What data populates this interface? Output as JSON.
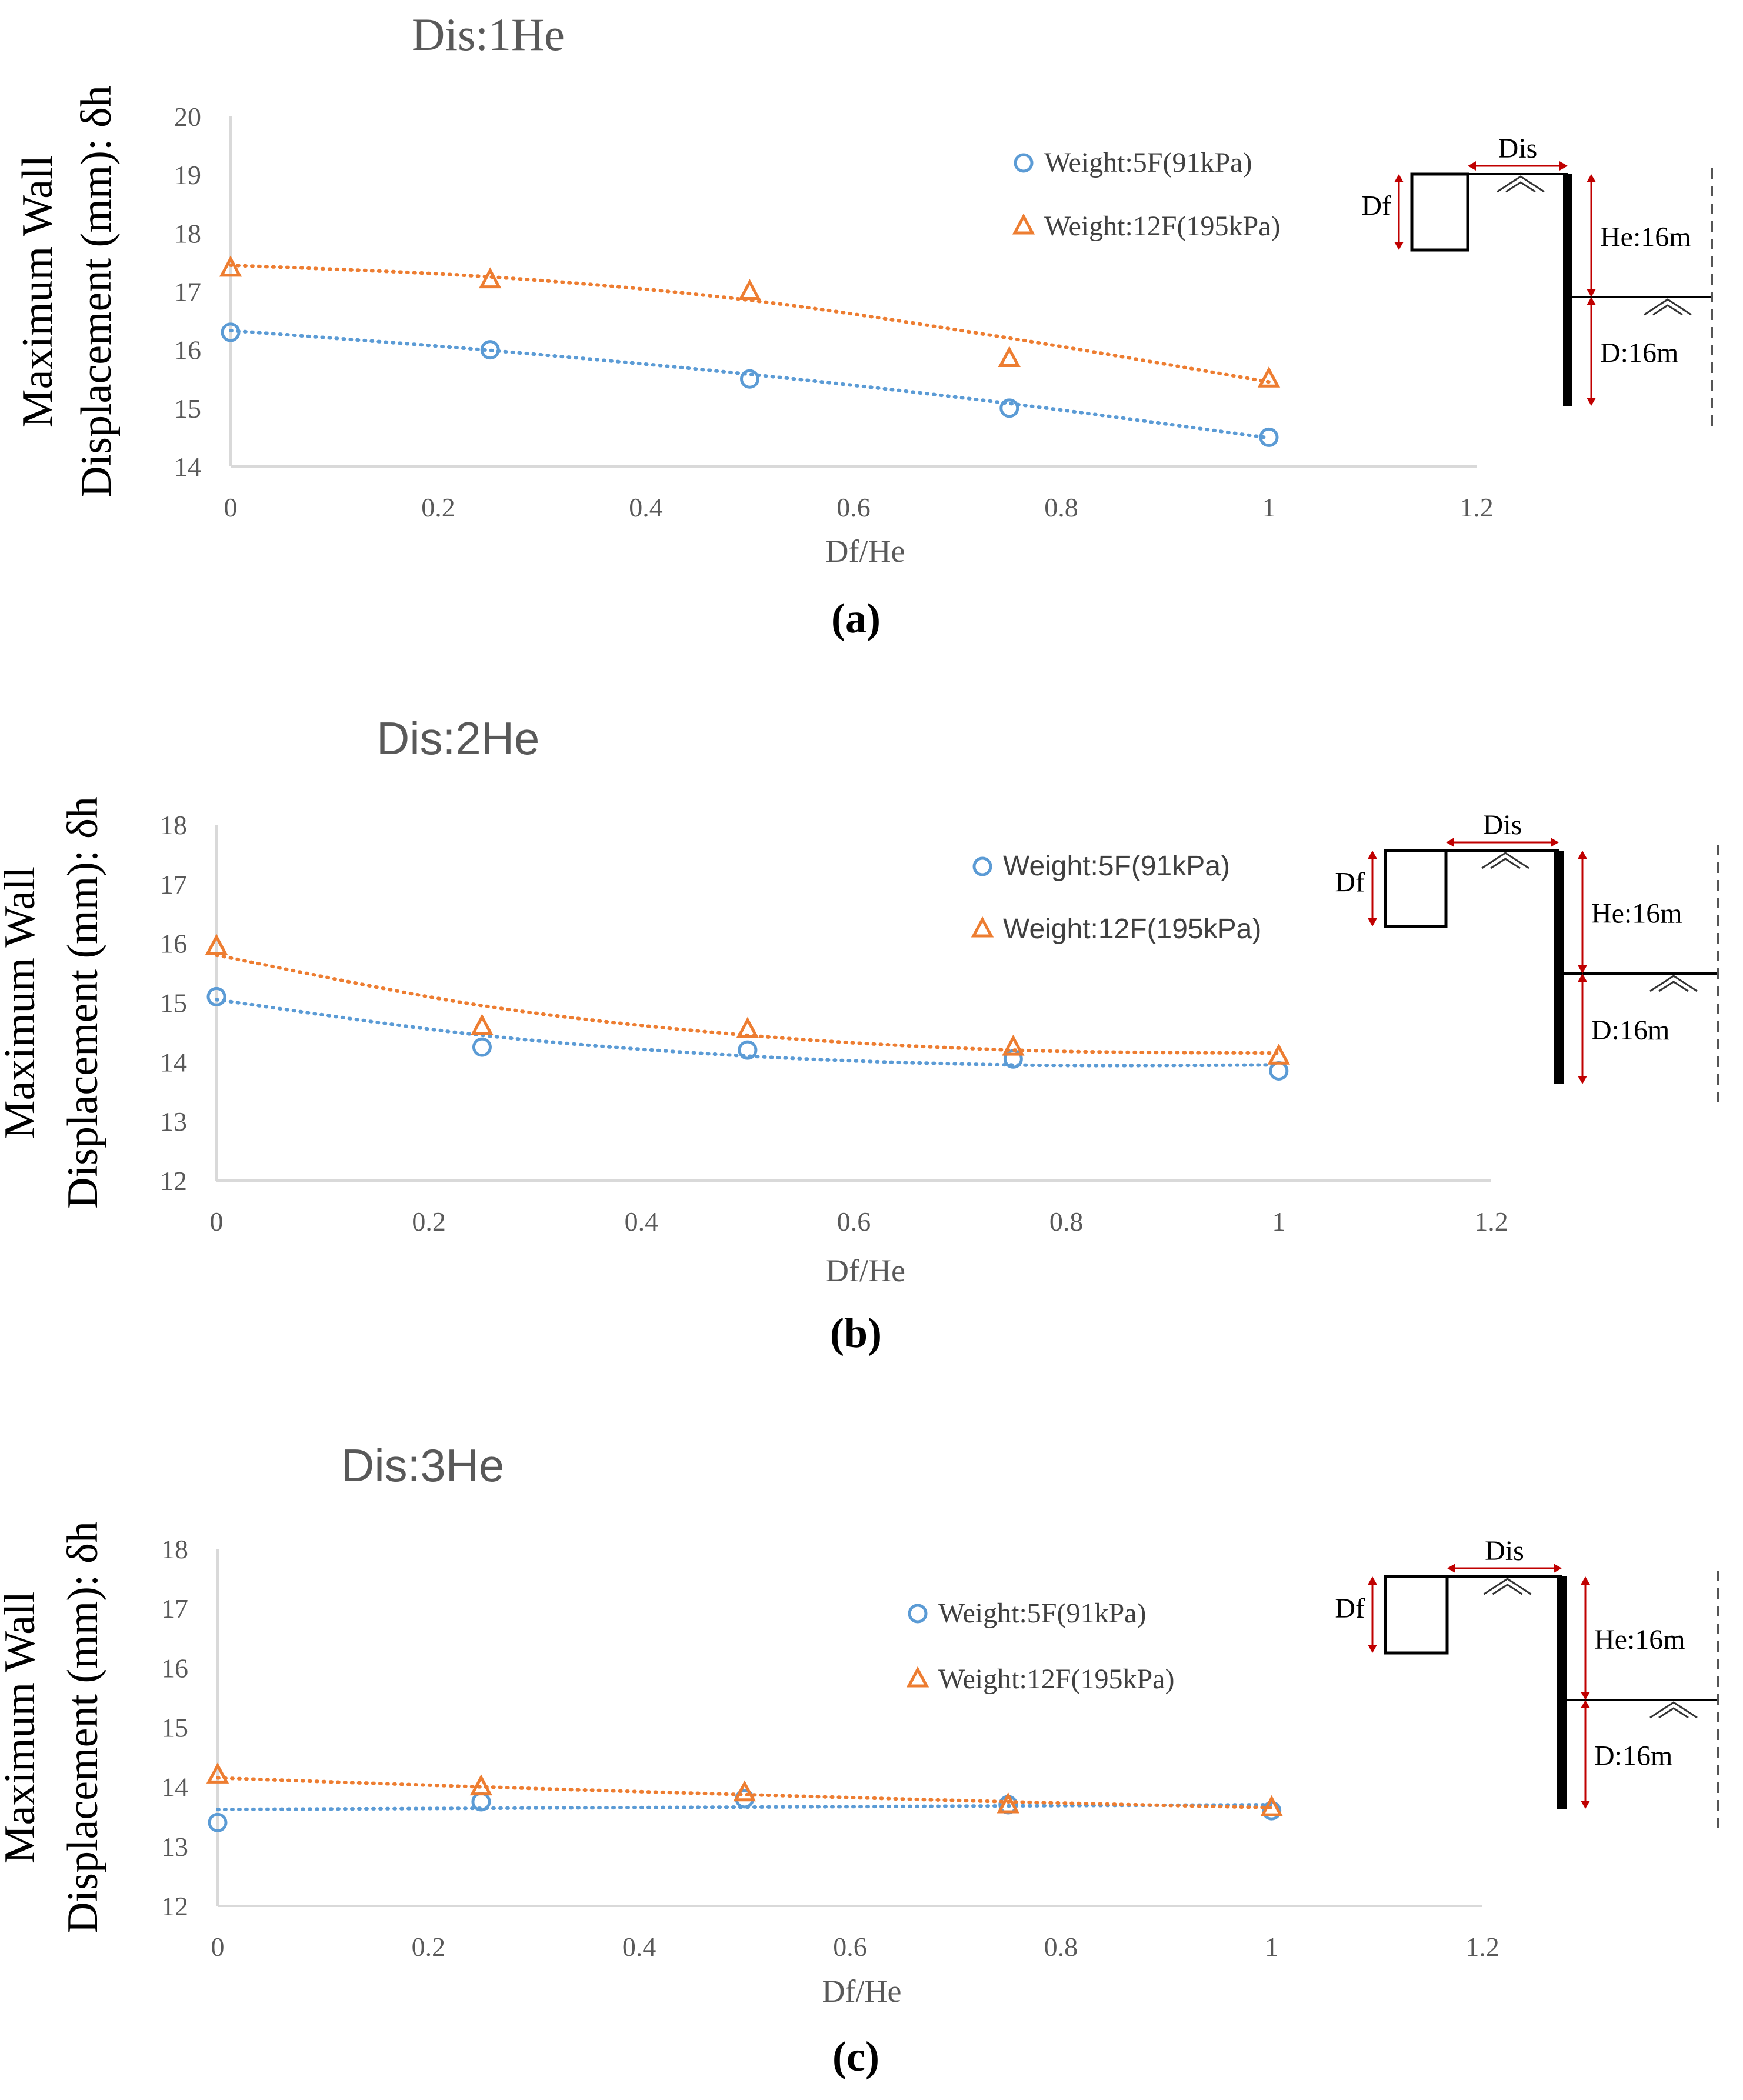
{
  "chart_data": [
    {
      "type": "scatter",
      "title": "Dis:1He",
      "xlabel": "Df/He",
      "ylabel_line1": "Maximum Wall",
      "ylabel_line2": "Displacement (mm): δh",
      "xlim": [
        0,
        1.2
      ],
      "ylim": [
        14,
        20
      ],
      "xticks": [
        0,
        0.2,
        0.4,
        0.6,
        0.8,
        1,
        1.2
      ],
      "xtick_labels": [
        "0",
        "0.2",
        "0.4",
        "0.6",
        "0.8",
        "1",
        "1.2"
      ],
      "yticks": [
        14,
        15,
        16,
        17,
        18,
        19,
        20
      ],
      "ytick_labels": [
        "14",
        "15",
        "16",
        "17",
        "18",
        "19",
        "20"
      ],
      "caption": "(a)",
      "x": [
        0,
        0.25,
        0.5,
        0.75,
        1
      ],
      "series": [
        {
          "name": "Weight:5F(91kPa)",
          "marker": "circle",
          "color": "#5b9bd5",
          "values": [
            16.3,
            16.0,
            15.5,
            15.0,
            14.5
          ],
          "trend": [
            16.33,
            15.99,
            15.58,
            15.08,
            14.49
          ]
        },
        {
          "name": "Weight:12F(195kPa)",
          "marker": "triangle",
          "color": "#ed7d31",
          "values": [
            17.4,
            17.2,
            17.0,
            15.85,
            15.5
          ],
          "trend": [
            17.45,
            17.25,
            16.85,
            16.2,
            15.45
          ]
        }
      ],
      "legend_position": "top-right",
      "schematic": {
        "dis": "Dis",
        "df": "Df",
        "he": "He:16m",
        "d": "D:16m"
      }
    },
    {
      "type": "scatter",
      "title": "Dis:2He",
      "xlabel": "Df/He",
      "ylabel_line1": "Maximum Wall",
      "ylabel_line2": "Displacement (mm): δh",
      "xlim": [
        0,
        1.2
      ],
      "ylim": [
        12,
        18
      ],
      "xticks": [
        0,
        0.2,
        0.4,
        0.6,
        0.8,
        1,
        1.2
      ],
      "xtick_labels": [
        "0",
        "0.2",
        "0.4",
        "0.6",
        "0.8",
        "1",
        "1.2"
      ],
      "yticks": [
        12,
        13,
        14,
        15,
        16,
        17,
        18
      ],
      "ytick_labels": [
        "12",
        "13",
        "14",
        "15",
        "16",
        "17",
        "18"
      ],
      "caption": "(b)",
      "x": [
        0,
        0.25,
        0.5,
        0.75,
        1
      ],
      "series": [
        {
          "name": "Weight:5F(91kPa)",
          "marker": "circle",
          "color": "#5b9bd5",
          "values": [
            15.1,
            14.25,
            14.2,
            14.05,
            13.85
          ],
          "trend": [
            15.05,
            14.45,
            14.1,
            13.95,
            13.95
          ]
        },
        {
          "name": "Weight:12F(195kPa)",
          "marker": "triangle",
          "color": "#ed7d31",
          "values": [
            15.95,
            14.6,
            14.55,
            14.25,
            14.1
          ],
          "trend": [
            15.8,
            14.95,
            14.45,
            14.2,
            14.15
          ]
        }
      ],
      "legend_position": "top-right",
      "schematic": {
        "dis": "Dis",
        "df": "Df",
        "he": "He:16m",
        "d": "D:16m"
      }
    },
    {
      "type": "scatter",
      "title": "Dis:3He",
      "xlabel": "Df/He",
      "ylabel_line1": "Maximum Wall",
      "ylabel_line2": "Displacement (mm): δh",
      "xlim": [
        0,
        1.2
      ],
      "ylim": [
        12,
        18
      ],
      "xticks": [
        0,
        0.2,
        0.4,
        0.6,
        0.8,
        1,
        1.2
      ],
      "xtick_labels": [
        "0",
        "0.2",
        "0.4",
        "0.6",
        "0.8",
        "1",
        "1.2"
      ],
      "yticks": [
        12,
        13,
        14,
        15,
        16,
        17,
        18
      ],
      "ytick_labels": [
        "12",
        "13",
        "14",
        "15",
        "16",
        "17",
        "18"
      ],
      "caption": "(c)",
      "x": [
        0,
        0.25,
        0.5,
        0.75,
        1
      ],
      "series": [
        {
          "name": "Weight:5F(91kPa)",
          "marker": "circle",
          "color": "#5b9bd5",
          "values": [
            13.4,
            13.75,
            13.8,
            13.7,
            13.6
          ],
          "trend": [
            13.62,
            13.64,
            13.66,
            13.68,
            13.7
          ]
        },
        {
          "name": "Weight:12F(195kPa)",
          "marker": "triangle",
          "color": "#ed7d31",
          "values": [
            14.2,
            14.0,
            13.9,
            13.7,
            13.65
          ],
          "trend": [
            14.15,
            14.0,
            13.87,
            13.75,
            13.65
          ]
        }
      ],
      "legend_position": "top-right",
      "schematic": {
        "dis": "Dis",
        "df": "Df",
        "he": "He:16m",
        "d": "D:16m"
      }
    }
  ]
}
